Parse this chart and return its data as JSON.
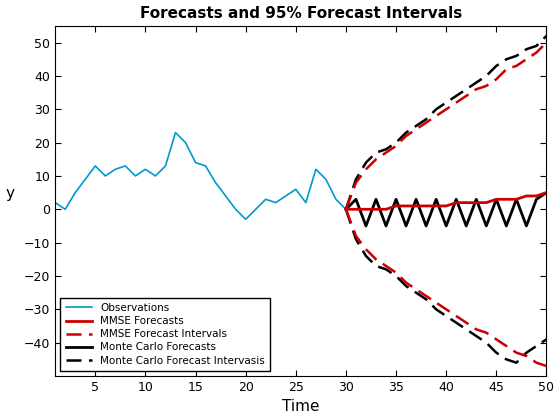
{
  "title": "Forecasts and 95% Forecast Intervals",
  "xlabel": "Time",
  "ylabel": "y",
  "ylim": [
    -50,
    55
  ],
  "xlim": [
    1,
    50
  ],
  "obs_x": [
    1,
    2,
    3,
    4,
    5,
    6,
    7,
    8,
    9,
    10,
    11,
    12,
    13,
    14,
    15,
    16,
    17,
    18,
    19,
    20,
    21,
    22,
    23,
    24,
    25,
    26,
    27,
    28,
    29,
    30
  ],
  "obs_y": [
    2,
    0,
    5,
    9,
    13,
    10,
    12,
    13,
    10,
    12,
    10,
    13,
    23,
    20,
    14,
    13,
    8,
    4,
    0,
    -3,
    0,
    3,
    2,
    4,
    6,
    2,
    12,
    9,
    3,
    0
  ],
  "mmse_forecast_x": [
    30,
    31,
    32,
    33,
    34,
    35,
    36,
    37,
    38,
    39,
    40,
    41,
    42,
    43,
    44,
    45,
    46,
    47,
    48,
    49,
    50
  ],
  "mmse_forecast_y": [
    0,
    0,
    0,
    0,
    0,
    1,
    1,
    1,
    1,
    1,
    1,
    2,
    2,
    2,
    2,
    3,
    3,
    3,
    4,
    4,
    5
  ],
  "mmse_upper_x": [
    30,
    31,
    32,
    33,
    34,
    35,
    36,
    37,
    38,
    39,
    40,
    41,
    42,
    43,
    44,
    45,
    46,
    47,
    48,
    49,
    50
  ],
  "mmse_upper_y": [
    0,
    8,
    12,
    15,
    17,
    19,
    22,
    24,
    26,
    28,
    30,
    32,
    34,
    36,
    37,
    39,
    42,
    43,
    45,
    47,
    50
  ],
  "mmse_lower_x": [
    30,
    31,
    32,
    33,
    34,
    35,
    36,
    37,
    38,
    39,
    40,
    41,
    42,
    43,
    44,
    45,
    46,
    47,
    48,
    49,
    50
  ],
  "mmse_lower_y": [
    0,
    -8,
    -12,
    -15,
    -17,
    -19,
    -22,
    -24,
    -26,
    -28,
    -30,
    -32,
    -34,
    -36,
    -37,
    -39,
    -41,
    -43,
    -44,
    -46,
    -47
  ],
  "mc_forecast_x": [
    30,
    31,
    32,
    33,
    34,
    35,
    36,
    37,
    38,
    39,
    40,
    41,
    42,
    43,
    44,
    45,
    46,
    47,
    48,
    49,
    50
  ],
  "mc_forecast_y": [
    0,
    3,
    -5,
    3,
    -5,
    3,
    -5,
    3,
    -5,
    3,
    -5,
    3,
    -5,
    3,
    -5,
    3,
    -5,
    3,
    -5,
    3,
    5
  ],
  "mc_upper_x": [
    30,
    31,
    32,
    33,
    34,
    35,
    36,
    37,
    38,
    39,
    40,
    41,
    42,
    43,
    44,
    45,
    46,
    47,
    48,
    49,
    50
  ],
  "mc_upper_y": [
    0,
    9,
    14,
    17,
    18,
    20,
    23,
    25,
    27,
    30,
    32,
    34,
    36,
    38,
    40,
    43,
    45,
    46,
    48,
    49,
    52
  ],
  "mc_lower_x": [
    30,
    31,
    32,
    33,
    34,
    35,
    36,
    37,
    38,
    39,
    40,
    41,
    42,
    43,
    44,
    45,
    46,
    47,
    48,
    49,
    50
  ],
  "mc_lower_y": [
    0,
    -9,
    -14,
    -17,
    -18,
    -20,
    -23,
    -25,
    -27,
    -30,
    -32,
    -34,
    -36,
    -38,
    -40,
    -43,
    -45,
    -46,
    -43,
    -41,
    -39
  ],
  "obs_color": "#0099CC",
  "mmse_fc_color": "#CC0000",
  "mmse_int_color": "#CC0000",
  "mc_fc_color": "#000000",
  "mc_int_color": "#000000",
  "legend_labels": [
    "Observations",
    "MMSE Forecasts",
    "MMSE Forecast Intervals",
    "Monte Carlo Forecasts",
    "Monte Carlo Forecast Intervasis"
  ],
  "xticks": [
    5,
    10,
    15,
    20,
    25,
    30,
    35,
    40,
    45,
    50
  ],
  "yticks": [
    -40,
    -30,
    -20,
    -10,
    0,
    10,
    20,
    30,
    40,
    50
  ],
  "figsize": [
    5.6,
    4.2
  ],
  "dpi": 100
}
